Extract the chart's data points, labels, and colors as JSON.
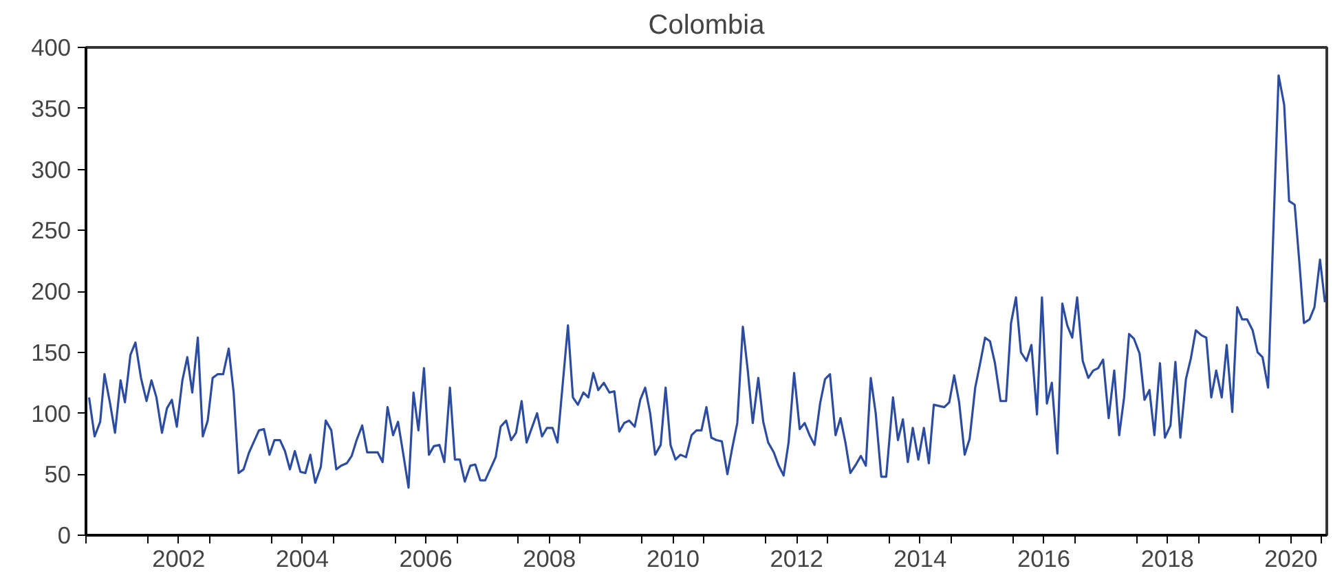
{
  "chart_data": {
    "type": "line",
    "title": "Colombia",
    "xlim": [
      2001,
      2021.08
    ],
    "ylim": [
      0,
      400
    ],
    "yticks": [
      0,
      50,
      100,
      150,
      200,
      250,
      300,
      350,
      400
    ],
    "xticks": [
      {
        "value": 2001,
        "label": null
      },
      {
        "value": 2002,
        "label": null
      },
      {
        "value": 2002.5,
        "label": "2002"
      },
      {
        "value": 2003,
        "label": null
      },
      {
        "value": 2004,
        "label": null
      },
      {
        "value": 2004.5,
        "label": "2004"
      },
      {
        "value": 2005,
        "label": null
      },
      {
        "value": 2006,
        "label": null
      },
      {
        "value": 2006.5,
        "label": "2006"
      },
      {
        "value": 2007,
        "label": null
      },
      {
        "value": 2008,
        "label": null
      },
      {
        "value": 2008.5,
        "label": "2008"
      },
      {
        "value": 2009,
        "label": null
      },
      {
        "value": 2010,
        "label": null
      },
      {
        "value": 2010.5,
        "label": "2010"
      },
      {
        "value": 2011,
        "label": null
      },
      {
        "value": 2012,
        "label": null
      },
      {
        "value": 2012.5,
        "label": "2012"
      },
      {
        "value": 2013,
        "label": null
      },
      {
        "value": 2014,
        "label": null
      },
      {
        "value": 2014.5,
        "label": "2014"
      },
      {
        "value": 2015,
        "label": null
      },
      {
        "value": 2016,
        "label": null
      },
      {
        "value": 2016.5,
        "label": "2016"
      },
      {
        "value": 2017,
        "label": null
      },
      {
        "value": 2018,
        "label": null
      },
      {
        "value": 2018.5,
        "label": "2018"
      },
      {
        "value": 2019,
        "label": null
      },
      {
        "value": 2020,
        "label": null
      },
      {
        "value": 2020.5,
        "label": "2020"
      },
      {
        "value": 2021,
        "label": null
      }
    ],
    "grid": false,
    "marker": "none",
    "line_style": "solid",
    "x": [
      2001.05,
      2001.14,
      2001.23,
      2001.3,
      2001.39,
      2001.47,
      2001.56,
      2001.63,
      2001.72,
      2001.8,
      2001.89,
      2001.98,
      2002.06,
      2002.14,
      2002.23,
      2002.31,
      2002.39,
      2002.47,
      2002.56,
      2002.64,
      2002.72,
      2002.81,
      2002.89,
      2002.97,
      2003.05,
      2003.13,
      2003.22,
      2003.31,
      2003.39,
      2003.47,
      2003.55,
      2003.64,
      2003.8,
      2003.88,
      2003.97,
      2004.05,
      2004.14,
      2004.22,
      2004.3,
      2004.38,
      2004.47,
      2004.55,
      2004.63,
      2004.71,
      2004.8,
      2004.88,
      2004.97,
      2005.05,
      2005.13,
      2005.22,
      2005.3,
      2005.38,
      2005.47,
      2005.55,
      2005.72,
      2005.8,
      2005.88,
      2005.97,
      2006.05,
      2006.13,
      2006.22,
      2006.3,
      2006.38,
      2006.47,
      2006.55,
      2006.63,
      2006.72,
      2006.8,
      2006.89,
      2006.97,
      2007.05,
      2007.13,
      2007.22,
      2007.3,
      2007.38,
      2007.46,
      2007.63,
      2007.71,
      2007.8,
      2007.88,
      2007.96,
      2008.05,
      2008.13,
      2008.3,
      2008.38,
      2008.46,
      2008.55,
      2008.63,
      2008.8,
      2008.88,
      2008.96,
      2009.05,
      2009.13,
      2009.21,
      2009.29,
      2009.38,
      2009.47,
      2009.55,
      2009.63,
      2009.71,
      2009.79,
      2009.88,
      2009.97,
      2010.05,
      2010.13,
      2010.21,
      2010.3,
      2010.38,
      2010.46,
      2010.54,
      2010.62,
      2010.71,
      2010.8,
      2010.88,
      2010.96,
      2011.04,
      2011.12,
      2011.2,
      2011.29,
      2011.38,
      2011.46,
      2011.54,
      2011.63,
      2011.71,
      2011.79,
      2011.88,
      2011.96,
      2012.04,
      2012.13,
      2012.21,
      2012.29,
      2012.37,
      2012.46,
      2012.55,
      2012.63,
      2012.71,
      2012.79,
      2012.88,
      2012.96,
      2013.04,
      2013.13,
      2013.21,
      2013.29,
      2013.37,
      2013.46,
      2013.54,
      2013.62,
      2013.7,
      2013.78,
      2013.87,
      2013.95,
      2014.06,
      2014.14,
      2014.22,
      2014.3,
      2014.38,
      2014.47,
      2014.56,
      2014.64,
      2014.72,
      2014.89,
      2014.97,
      2015.05,
      2015.13,
      2015.22,
      2015.3,
      2015.39,
      2015.47,
      2015.55,
      2015.63,
      2015.71,
      2015.8,
      2015.89,
      2015.97,
      2016.05,
      2016.13,
      2016.22,
      2016.3,
      2016.39,
      2016.47,
      2016.55,
      2016.63,
      2016.72,
      2016.8,
      2016.88,
      2016.96,
      2017.04,
      2017.13,
      2017.22,
      2017.3,
      2017.38,
      2017.46,
      2017.55,
      2017.64,
      2017.72,
      2017.8,
      2017.88,
      2017.96,
      2018.05,
      2018.13,
      2018.21,
      2018.29,
      2018.38,
      2018.46,
      2018.55,
      2018.63,
      2018.71,
      2018.8,
      2018.88,
      2018.96,
      2019.05,
      2019.13,
      2019.21,
      2019.29,
      2019.38,
      2019.46,
      2019.55,
      2019.63,
      2019.71,
      2019.79,
      2019.88,
      2019.96,
      2020.04,
      2020.13,
      2020.3,
      2020.39,
      2020.47,
      2020.56,
      2020.64,
      2020.71,
      2020.8,
      2020.88,
      2020.97,
      2021.05
    ],
    "series": [
      {
        "color": "#2b4ca0",
        "values": [
          113,
          81,
          93,
          132,
          108,
          84,
          127,
          109,
          148,
          158,
          129,
          110,
          127,
          113,
          84,
          104,
          111,
          89,
          127,
          146,
          117,
          162,
          81,
          94,
          129,
          132,
          132,
          153,
          117,
          51,
          54,
          68,
          86,
          87,
          66,
          78,
          78,
          69,
          54,
          69,
          52,
          51,
          66,
          43,
          56,
          94,
          86,
          54,
          57,
          59,
          65,
          78,
          90,
          68,
          68,
          60,
          105,
          82,
          93,
          68,
          39,
          117,
          86,
          137,
          66,
          73,
          74,
          60,
          121,
          62,
          62,
          44,
          57,
          58,
          45,
          45,
          64,
          89,
          94,
          78,
          84,
          110,
          76,
          100,
          81,
          88,
          88,
          76,
          172,
          113,
          107,
          117,
          113,
          133,
          119,
          125,
          117,
          118,
          85,
          92,
          94,
          89,
          111,
          121,
          100,
          66,
          74,
          121,
          74,
          62,
          66,
          64,
          82,
          86,
          86,
          105,
          80,
          78,
          77,
          50,
          72,
          92,
          171,
          135,
          92,
          129,
          93,
          76,
          68,
          57,
          49,
          76,
          133,
          87,
          92,
          82,
          74,
          108,
          128,
          132,
          82,
          96,
          76,
          51,
          58,
          65,
          57,
          129,
          100,
          48,
          48,
          113,
          78,
          95,
          60,
          88,
          62,
          88,
          59,
          107,
          105,
          109,
          131,
          109,
          66,
          79,
          121,
          141,
          162,
          159,
          141,
          110,
          110,
          174,
          195,
          150,
          143,
          156,
          99,
          195,
          108,
          125,
          67,
          190,
          172,
          162,
          195,
          143,
          129,
          135,
          137,
          144,
          96,
          135,
          82,
          113,
          165,
          161,
          149,
          111,
          119,
          82,
          141,
          80,
          90,
          142,
          80,
          128,
          145,
          168,
          164,
          162,
          113,
          135,
          113,
          156,
          101,
          187,
          177,
          177,
          168,
          150,
          146,
          121,
          377,
          353,
          274,
          271,
          221,
          174,
          177,
          187,
          226,
          191
        ]
      }
    ]
  }
}
